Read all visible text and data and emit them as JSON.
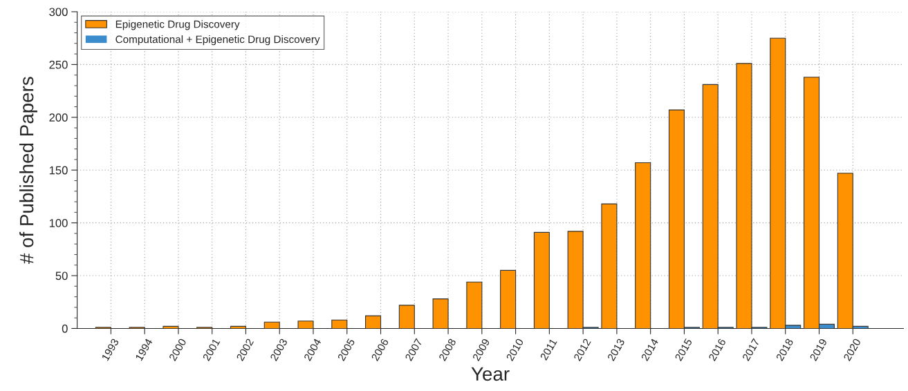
{
  "chart_data": {
    "type": "bar",
    "xlabel": "Year",
    "ylabel": "# of Published Papers",
    "categories": [
      "1993",
      "1994",
      "2000",
      "2001",
      "2002",
      "2003",
      "2004",
      "2005",
      "2006",
      "2007",
      "2008",
      "2009",
      "2010",
      "2011",
      "2012",
      "2013",
      "2014",
      "2015",
      "2016",
      "2017",
      "2018",
      "2019",
      "2020"
    ],
    "series": [
      {
        "name": "Epigenetic Drug Discovery",
        "color": "#ff9200",
        "values": [
          1,
          1,
          2,
          1,
          2,
          6,
          7,
          8,
          12,
          22,
          28,
          44,
          55,
          91,
          92,
          118,
          157,
          207,
          231,
          251,
          275,
          238,
          147
        ]
      },
      {
        "name": "Computational + Epigenetic Drug Discovery",
        "color": "#3a8ccc",
        "values": [
          0,
          0,
          0,
          0,
          0,
          0,
          0,
          0,
          0,
          0,
          0,
          0,
          0,
          0,
          1,
          0,
          0,
          1,
          1,
          1,
          3,
          4,
          2
        ]
      }
    ],
    "ylim": [
      0,
      300
    ],
    "yticks": [
      0,
      50,
      100,
      150,
      200,
      250,
      300
    ],
    "grid": true,
    "legend": "top left"
  }
}
